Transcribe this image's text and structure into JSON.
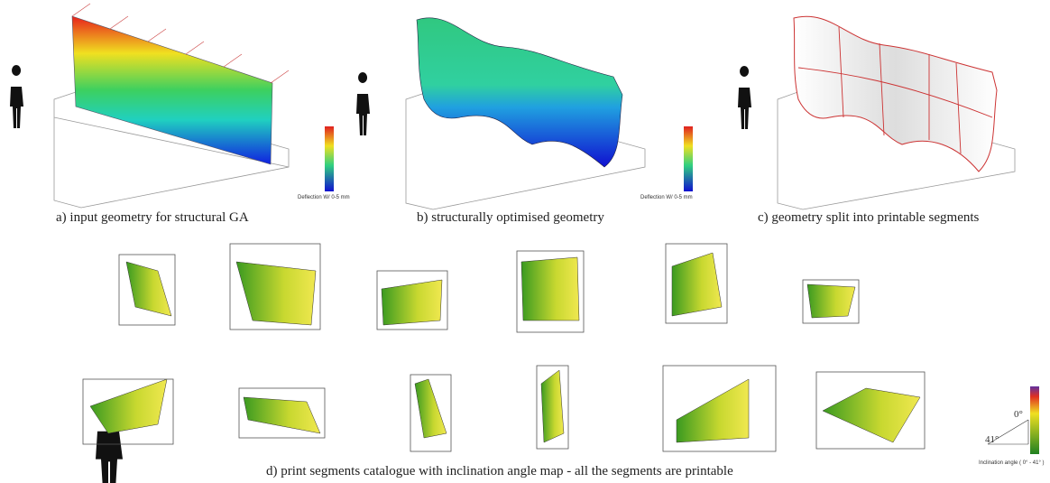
{
  "figure": {
    "panels": [
      {
        "caption": "a) input geometry for structural GA",
        "legend": "Deflection W/ 0-5 mm"
      },
      {
        "caption": "b) structurally optimised geometry",
        "legend": "Deflection W/ 0-5 mm"
      },
      {
        "caption": "c) geometry split into printable segments"
      },
      {
        "caption": "d) print segments catalogue with inclination angle map - all the segments are printable",
        "legend": "Inclination angle ( 0° - 41° )",
        "angle_top": "0°",
        "angle_side": "41°"
      }
    ]
  }
}
